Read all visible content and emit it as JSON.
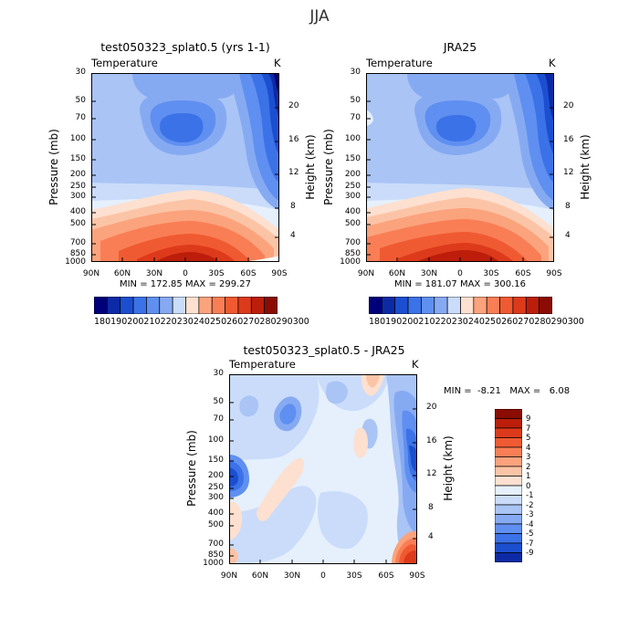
{
  "figure": {
    "title": "JJA"
  },
  "colors": {
    "levels": [
      "#00007a",
      "#0d2aa6",
      "#1c4fd0",
      "#3c72e8",
      "#5f8ff0",
      "#86aaf2",
      "#a9c4f5",
      "#cadcfa",
      "#e5f0fc",
      "#fde0d0",
      "#fcc4a6",
      "#fba37d",
      "#f97e55",
      "#f05a32",
      "#dd3a1b",
      "#bc1e0b",
      "#8a0c04",
      "#5a0000"
    ]
  },
  "chart_data": [
    {
      "type": "heatmap",
      "title": "test050323_splat0.5 (yrs 1-1)",
      "variable": "Temperature",
      "units": "K",
      "xlabel": "",
      "ylabel": "Pressure (mb)",
      "ylabel_right": "Height (km)",
      "x_ticks": [
        "90N",
        "60N",
        "30N",
        "0",
        "30S",
        "60S",
        "90S"
      ],
      "y_ticks": [
        "30",
        "50",
        "70",
        "100",
        "150",
        "200",
        "250",
        "300",
        "400",
        "500",
        "700",
        "850",
        "1000"
      ],
      "right_ticks": [
        "20",
        "16",
        "12",
        "8",
        "4"
      ],
      "stats": "MIN = 172.85   MAX = 299.27",
      "colorbar": [
        "180",
        "190",
        "200",
        "210",
        "220",
        "230",
        "240",
        "250",
        "260",
        "270",
        "280",
        "290",
        "300"
      ],
      "ylim": [
        1000,
        30
      ],
      "xlim": [
        "90N",
        "90S"
      ]
    },
    {
      "type": "heatmap",
      "title": "JRA25",
      "variable": "Temperature",
      "units": "K",
      "xlabel": "",
      "ylabel": "Pressure (mb)",
      "ylabel_right": "Height (km)",
      "x_ticks": [
        "90N",
        "60N",
        "30N",
        "0",
        "30S",
        "60S",
        "90S"
      ],
      "y_ticks": [
        "30",
        "50",
        "70",
        "100",
        "150",
        "200",
        "250",
        "300",
        "400",
        "500",
        "700",
        "850",
        "1000"
      ],
      "right_ticks": [
        "20",
        "16",
        "12",
        "8",
        "4"
      ],
      "stats": "MIN = 181.07   MAX = 300.16",
      "colorbar": [
        "180",
        "190",
        "200",
        "210",
        "220",
        "230",
        "240",
        "250",
        "260",
        "270",
        "280",
        "290",
        "300"
      ],
      "ylim": [
        1000,
        30
      ],
      "xlim": [
        "90N",
        "90S"
      ]
    },
    {
      "type": "heatmap",
      "title": "test050323_splat0.5 - JRA25",
      "variable": "Temperature",
      "units": "K",
      "xlabel": "",
      "ylabel": "Pressure (mb)",
      "ylabel_right": "Height (km)",
      "x_ticks": [
        "90N",
        "60N",
        "30N",
        "0",
        "30S",
        "60S",
        "90S"
      ],
      "y_ticks": [
        "30",
        "50",
        "70",
        "100",
        "150",
        "200",
        "250",
        "300",
        "400",
        "500",
        "700",
        "850",
        "1000"
      ],
      "right_ticks": [
        "20",
        "16",
        "12",
        "8",
        "4"
      ],
      "stats": "MIN =  -8.21   MAX =   6.08",
      "colorbar": [
        "9",
        "7",
        "5",
        "4",
        "3",
        "2",
        "1",
        "0",
        "-1",
        "-2",
        "-3",
        "-4",
        "-5",
        "-7",
        "-9"
      ],
      "ylim": [
        1000,
        30
      ],
      "xlim": [
        "90N",
        "90S"
      ]
    }
  ]
}
